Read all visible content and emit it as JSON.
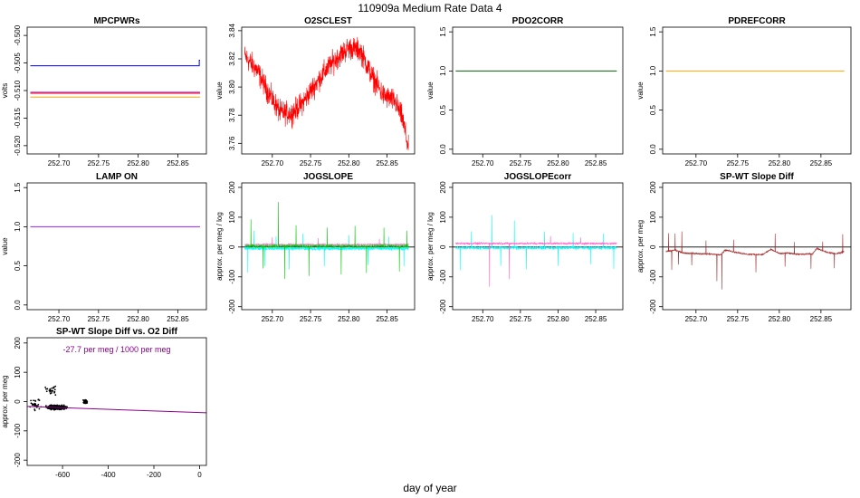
{
  "figure": {
    "title": "110909a   Medium Rate Data 4",
    "xlabel": "day of year"
  },
  "chart_data": [
    {
      "id": "mpcpwrs",
      "type": "line",
      "title": "MPCPWRs",
      "ylabel": "volts",
      "xlim": [
        252.66,
        252.886
      ],
      "ylim": [
        -0.5215,
        -0.4985
      ],
      "xticks": [
        252.7,
        252.75,
        252.8,
        252.85
      ],
      "xtick_labels": [
        "252.70",
        "252.75",
        "252.80",
        "252.85"
      ],
      "yticks": [
        -0.52,
        -0.515,
        -0.51,
        -0.505,
        -0.5
      ],
      "ytick_labels": [
        "-0.520",
        "-0.515",
        "-0.510",
        "-0.505",
        "-0.500"
      ],
      "series": [
        {
          "color": "#0000FF",
          "x": [
            252.664,
            252.877,
            252.877,
            252.878
          ],
          "y": [
            -0.5055,
            -0.5055,
            -0.5045,
            -0.5045
          ]
        },
        {
          "color": "#FF0000",
          "x": [
            252.664,
            252.878
          ],
          "y": [
            -0.5105,
            -0.5105
          ]
        },
        {
          "color": "#A020F0",
          "x": [
            252.664,
            252.878
          ],
          "y": [
            -0.5103,
            -0.5103
          ]
        },
        {
          "color": "#FFA500",
          "x": [
            252.664,
            252.878
          ],
          "y": [
            -0.5112,
            -0.5112
          ]
        }
      ]
    },
    {
      "id": "o2sclest",
      "type": "line",
      "title": "O2SCLEST",
      "ylabel": "value",
      "xlim": [
        252.66,
        252.886
      ],
      "ylim": [
        3.7525,
        3.8425
      ],
      "xticks": [
        252.7,
        252.75,
        252.8,
        252.85
      ],
      "xtick_labels": [
        "252.70",
        "252.75",
        "252.80",
        "252.85"
      ],
      "yticks": [
        3.76,
        3.78,
        3.8,
        3.82,
        3.84
      ],
      "ytick_labels": [
        "3.76",
        "3.78",
        "3.80",
        "3.82",
        "3.84"
      ],
      "series": [
        {
          "color": "#FF0000",
          "noise": 0.012,
          "x": [
            252.664,
            252.68,
            252.695,
            252.71,
            252.725,
            252.74,
            252.755,
            252.77,
            252.785,
            252.8,
            252.815,
            252.83,
            252.845,
            252.86,
            252.87,
            252.878
          ],
          "y": [
            3.822,
            3.812,
            3.796,
            3.782,
            3.781,
            3.789,
            3.801,
            3.812,
            3.821,
            3.828,
            3.826,
            3.808,
            3.794,
            3.79,
            3.778,
            3.756
          ]
        }
      ]
    },
    {
      "id": "pdo2corr",
      "type": "line",
      "title": "PDO2CORR",
      "ylabel": "value",
      "xlim": [
        252.66,
        252.886
      ],
      "ylim": [
        -0.06,
        1.56
      ],
      "xticks": [
        252.7,
        252.75,
        252.8,
        252.85
      ],
      "xtick_labels": [
        "252.70",
        "252.75",
        "252.80",
        "252.85"
      ],
      "yticks": [
        0.0,
        0.5,
        1.0,
        1.5
      ],
      "ytick_labels": [
        "0.0",
        "0.5",
        "1.0",
        "1.5"
      ],
      "series": [
        {
          "color": "#006400",
          "x": [
            252.664,
            252.878
          ],
          "y": [
            1.0,
            1.0
          ]
        }
      ]
    },
    {
      "id": "pdrefcorr",
      "type": "line",
      "title": "PDREFCORR",
      "ylabel": "value",
      "xlim": [
        252.66,
        252.886
      ],
      "ylim": [
        -0.06,
        1.56
      ],
      "xticks": [
        252.7,
        252.75,
        252.8,
        252.85
      ],
      "xtick_labels": [
        "252.70",
        "252.75",
        "252.80",
        "252.85"
      ],
      "yticks": [
        0.0,
        0.5,
        1.0,
        1.5
      ],
      "ytick_labels": [
        "0.0",
        "0.5",
        "1.0",
        "1.5"
      ],
      "series": [
        {
          "color": "#FFA500",
          "x": [
            252.664,
            252.878
          ],
          "y": [
            1.0,
            1.0
          ]
        }
      ]
    },
    {
      "id": "lampon",
      "type": "line",
      "title": "LAMP ON",
      "ylabel": "value",
      "xlim": [
        252.66,
        252.886
      ],
      "ylim": [
        -0.06,
        1.56
      ],
      "xticks": [
        252.7,
        252.75,
        252.8,
        252.85
      ],
      "xtick_labels": [
        "252.70",
        "252.75",
        "252.80",
        "252.85"
      ],
      "yticks": [
        0.0,
        0.5,
        1.0,
        1.5
      ],
      "ytick_labels": [
        "0.0",
        "0.5",
        "1.0",
        "1.5"
      ],
      "series": [
        {
          "color": "#A020F0",
          "x": [
            252.664,
            252.878
          ],
          "y": [
            1.0,
            1.0
          ]
        }
      ]
    },
    {
      "id": "jogslope",
      "type": "line",
      "title": "JOGSLOPE",
      "ylabel": "approx. per meg / log",
      "xlim": [
        252.66,
        252.886
      ],
      "ylim": [
        -210,
        215
      ],
      "xticks": [
        252.7,
        252.75,
        252.8,
        252.85
      ],
      "xtick_labels": [
        "252.70",
        "252.75",
        "252.80",
        "252.85"
      ],
      "yticks": [
        -200,
        -100,
        0,
        100,
        200
      ],
      "ytick_labels": [
        "-200",
        "-100",
        "0",
        "100",
        "200"
      ],
      "hline": 0,
      "series": [
        {
          "color": "#00FFFF",
          "noise": 8,
          "x": [
            252.664,
            252.878
          ],
          "y": [
            -5,
            -5
          ],
          "spikes": [
            [
              252.668,
              -80
            ],
            [
              252.676,
              60
            ],
            [
              252.69,
              -60
            ],
            [
              252.705,
              40
            ],
            [
              252.722,
              -70
            ],
            [
              252.74,
              50
            ],
            [
              252.768,
              -60
            ],
            [
              252.8,
              45
            ],
            [
              252.825,
              -55
            ],
            [
              252.852,
              40
            ],
            [
              252.872,
              -60
            ]
          ]
        },
        {
          "color": "#FF66CC",
          "noise": 4,
          "x": [
            252.664,
            252.878
          ],
          "y": [
            8,
            8
          ],
          "spikes": [
            [
              252.7,
              25
            ],
            [
              252.76,
              22
            ],
            [
              252.84,
              20
            ]
          ]
        },
        {
          "color": "#00CC00",
          "noise": 7,
          "x": [
            252.664,
            252.878
          ],
          "y": [
            3,
            3
          ],
          "spikes": [
            [
              252.672,
              90
            ],
            [
              252.688,
              -75
            ],
            [
              252.708,
              148
            ],
            [
              252.716,
              -110
            ],
            [
              252.731,
              70
            ],
            [
              252.748,
              -100
            ],
            [
              252.772,
              62
            ],
            [
              252.79,
              -95
            ],
            [
              252.808,
              68
            ],
            [
              252.823,
              -90
            ],
            [
              252.846,
              62
            ],
            [
              252.866,
              -85
            ],
            [
              252.876,
              52
            ]
          ]
        }
      ]
    },
    {
      "id": "jogslopecorr",
      "type": "line",
      "title": "JOGSLOPEcorr",
      "ylabel": "approx. per meg / log",
      "xlim": [
        252.66,
        252.886
      ],
      "ylim": [
        -210,
        215
      ],
      "xticks": [
        252.7,
        252.75,
        252.8,
        252.85
      ],
      "xtick_labels": [
        "252.70",
        "252.75",
        "252.80",
        "252.85"
      ],
      "yticks": [
        -200,
        -100,
        0,
        100,
        200
      ],
      "ytick_labels": [
        "-200",
        "-100",
        "0",
        "100",
        "200"
      ],
      "hline": 0,
      "series": [
        {
          "color": "#00FFFF",
          "noise": 7,
          "x": [
            252.664,
            252.878
          ],
          "y": [
            -3,
            -3
          ],
          "spikes": [
            [
              252.67,
              -75
            ],
            [
              252.685,
              55
            ],
            [
              252.712,
              110
            ],
            [
              252.724,
              -60
            ],
            [
              252.742,
              92
            ],
            [
              252.758,
              -72
            ],
            [
              252.782,
              55
            ],
            [
              252.8,
              -60
            ],
            [
              252.82,
              50
            ],
            [
              252.843,
              -55
            ],
            [
              252.86,
              48
            ],
            [
              252.874,
              -70
            ]
          ]
        },
        {
          "color": "#FF66CC",
          "noise": 5,
          "x": [
            252.664,
            252.878
          ],
          "y": [
            12,
            12
          ],
          "spikes": [
            [
              252.709,
              -145
            ],
            [
              252.735,
              -120
            ],
            [
              252.79,
              25
            ],
            [
              252.83,
              20
            ]
          ]
        }
      ]
    },
    {
      "id": "spwt",
      "type": "line",
      "title": "SP-WT Slope Diff",
      "ylabel": "approx. per meg",
      "xlim": [
        252.66,
        252.886
      ],
      "ylim": [
        -210,
        215
      ],
      "xticks": [
        252.7,
        252.75,
        252.8,
        252.85
      ],
      "xtick_labels": [
        "252.70",
        "252.75",
        "252.80",
        "252.85"
      ],
      "yticks": [
        -200,
        -100,
        0,
        100,
        200
      ],
      "ytick_labels": [
        "-200",
        "-100",
        "0",
        "100",
        "200"
      ],
      "hline": 0,
      "series": [
        {
          "color": "#A52A2A",
          "noise": 4,
          "x": [
            252.664,
            252.675,
            252.685,
            252.7,
            252.73,
            252.735,
            252.76,
            252.78,
            252.79,
            252.8,
            252.81,
            252.82,
            252.84,
            252.845,
            252.86,
            252.87,
            252.878
          ],
          "y": [
            -15,
            -10,
            -20,
            -22,
            -25,
            -10,
            -24,
            -25,
            -8,
            -22,
            -20,
            -24,
            -23,
            -5,
            -20,
            -22,
            -15
          ],
          "spikes": [
            [
              252.667,
              60
            ],
            [
              252.671,
              -65
            ],
            [
              252.675,
              55
            ],
            [
              252.679,
              -45
            ],
            [
              252.683,
              70
            ],
            [
              252.695,
              -40
            ],
            [
              252.712,
              45
            ],
            [
              252.725,
              -90
            ],
            [
              252.731,
              -120
            ],
            [
              252.745,
              40
            ],
            [
              252.772,
              -60
            ],
            [
              252.795,
              60
            ],
            [
              252.807,
              -45
            ],
            [
              252.818,
              40
            ],
            [
              252.838,
              -50
            ],
            [
              252.852,
              30
            ],
            [
              252.866,
              -50
            ],
            [
              252.876,
              60
            ]
          ]
        }
      ]
    },
    {
      "id": "scatter",
      "type": "scatter",
      "title": "SP-WT Slope Diff vs. O2 Diff",
      "ylabel": "approx. per meg",
      "xlim": [
        -755,
        30
      ],
      "ylim": [
        -218,
        218
      ],
      "xticks": [
        -600,
        -400,
        -200,
        0
      ],
      "xtick_labels": [
        "-600",
        "-400",
        "-200",
        "0"
      ],
      "yticks": [
        -200,
        -100,
        0,
        100,
        200
      ],
      "ytick_labels": [
        "-200",
        "-100",
        "0",
        "100",
        "200"
      ],
      "annotation": "-27.7 per meg / 1000 per meg",
      "fit": {
        "color": "#8B008B",
        "x": [
          -755,
          30
        ],
        "y": [
          -16.6,
          -38.4
        ]
      },
      "clusters": [
        {
          "cx": -625,
          "cy": -20,
          "sx": 55,
          "sy": 10,
          "n": 520
        },
        {
          "cx": -720,
          "cy": -10,
          "sx": 30,
          "sy": 30,
          "n": 30
        },
        {
          "cx": -500,
          "cy": 0,
          "sx": 12,
          "sy": 10,
          "n": 60
        },
        {
          "cx": -650,
          "cy": 40,
          "sx": 30,
          "sy": 20,
          "n": 25
        }
      ]
    }
  ]
}
